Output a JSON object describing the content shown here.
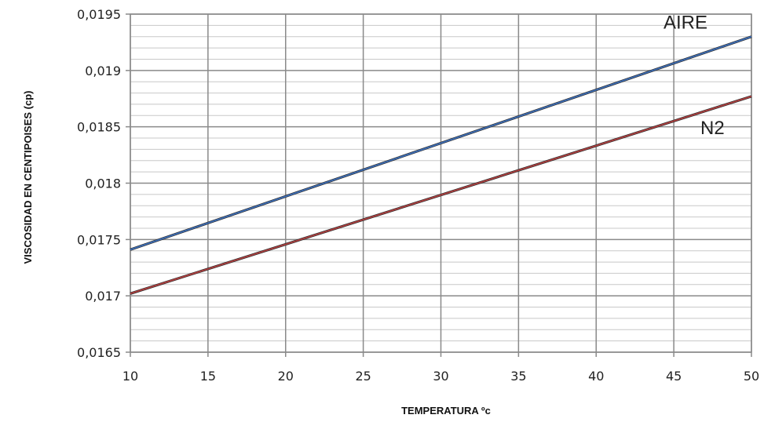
{
  "chart_data": {
    "type": "line",
    "xlabel": "TEMPERATURA ºc",
    "ylabel": "VISCOSIDAD EN CENTIPOISES (cp)",
    "xlim": [
      10,
      50
    ],
    "ylim": [
      0.0165,
      0.0195
    ],
    "x_ticks": [
      10,
      15,
      20,
      25,
      30,
      35,
      40,
      45,
      50
    ],
    "x_tick_labels": [
      "10",
      "15",
      "20",
      "25",
      "30",
      "35",
      "40",
      "45",
      "50"
    ],
    "y_ticks": [
      0.0165,
      0.017,
      0.0175,
      0.018,
      0.0185,
      0.019,
      0.0195
    ],
    "y_tick_labels": [
      "0,0165",
      "0,017",
      "0,0175",
      "0,018",
      "0,0185",
      "0,019",
      "0,0195"
    ],
    "grid": true,
    "series": [
      {
        "name": "AIRE",
        "color": "#3e6fb8",
        "x": [
          10,
          50
        ],
        "y": [
          0.01741,
          0.0193
        ]
      },
      {
        "name": "N2",
        "color": "#b04040",
        "x": [
          10,
          50
        ],
        "y": [
          0.01702,
          0.01877
        ]
      }
    ]
  }
}
